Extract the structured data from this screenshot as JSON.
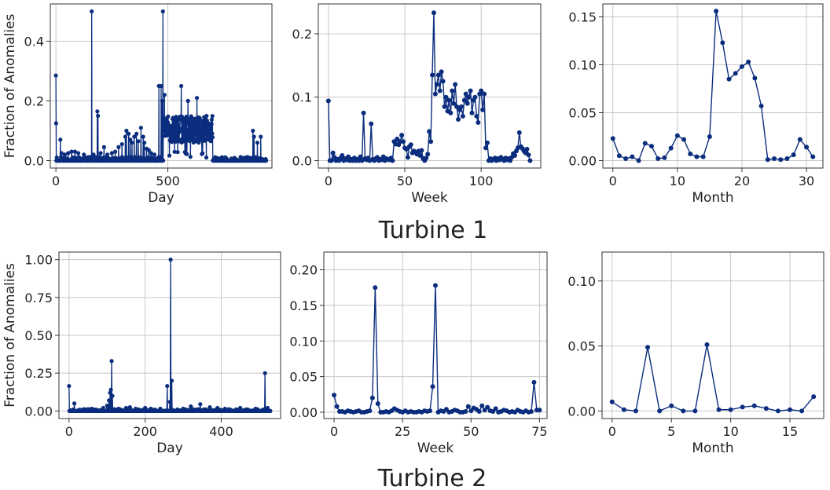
{
  "figure": {
    "row_titles": [
      "Turbine 1",
      "Turbine 2"
    ],
    "line_color": "#0b2d7e",
    "grid_color": "#c8c8c8"
  },
  "chart_data": [
    {
      "id": "t1-day",
      "type": "line",
      "turbine": "Turbine 1",
      "xlabel": "Day",
      "ylabel": "Fraction of Anomalies",
      "xlim": [
        -25,
        965
      ],
      "ylim": [
        -0.025,
        0.525
      ],
      "xticks": [
        0,
        500
      ],
      "xticklabels": [
        "0",
        "500"
      ],
      "yticks": [
        0,
        0.2,
        0.4
      ],
      "yticklabels": [
        "0.0",
        "0.2",
        "0.4"
      ],
      "style": "stem",
      "x_start": 0,
      "step": 1,
      "baseline": 0,
      "spikes": [
        [
          0,
          0.285
        ],
        [
          1,
          0.125
        ],
        [
          20,
          0.07
        ],
        [
          25,
          0.025
        ],
        [
          40,
          0.02
        ],
        [
          55,
          0.025
        ],
        [
          70,
          0.03
        ],
        [
          85,
          0.03
        ],
        [
          100,
          0.025
        ],
        [
          125,
          0.02
        ],
        [
          160,
          0.5
        ],
        [
          168,
          0.02
        ],
        [
          185,
          0.165
        ],
        [
          188,
          0.15
        ],
        [
          200,
          0.025
        ],
        [
          215,
          0.045
        ],
        [
          230,
          0.02
        ],
        [
          250,
          0.025
        ],
        [
          265,
          0.03
        ],
        [
          280,
          0.045
        ],
        [
          295,
          0.055
        ],
        [
          310,
          0.08
        ],
        [
          315,
          0.1
        ],
        [
          325,
          0.09
        ],
        [
          332,
          0.07
        ],
        [
          340,
          0.06
        ],
        [
          350,
          0.08
        ],
        [
          360,
          0.09
        ],
        [
          368,
          0.065
        ],
        [
          380,
          0.11
        ],
        [
          390,
          0.08
        ],
        [
          395,
          0.06
        ],
        [
          405,
          0.04
        ],
        [
          415,
          0.035
        ],
        [
          425,
          0.025
        ],
        [
          440,
          0.02
        ],
        [
          460,
          0.25
        ],
        [
          470,
          0.25
        ],
        [
          475,
          0.2
        ],
        [
          478,
          0.5
        ],
        [
          485,
          0.22
        ],
        [
          560,
          0.25
        ],
        [
          590,
          0.2
        ],
        [
          630,
          0.21
        ],
        [
          880,
          0.1
        ],
        [
          885,
          0.08
        ],
        [
          900,
          0.06
        ],
        [
          915,
          0.08
        ]
      ],
      "segments": [
        {
          "from": 480,
          "to": 700,
          "mean": 0.105,
          "amp": 0.045,
          "floor": 0.01
        }
      ],
      "n_points": 940
    },
    {
      "id": "t1-week",
      "type": "line",
      "turbine": "Turbine 1",
      "xlabel": "Week",
      "ylabel": "",
      "xlim": [
        -6.6,
        139
      ],
      "ylim": [
        -0.0118,
        0.247
      ],
      "xticks": [
        0,
        50,
        100
      ],
      "xticklabels": [
        "0",
        "50",
        "100"
      ],
      "yticks": [
        0,
        0.1,
        0.2
      ],
      "yticklabels": [
        "0.0",
        "0.1",
        "0.2"
      ],
      "x_start": 0,
      "step": 1,
      "values": [
        0.094,
        0.0,
        0.0,
        0.012,
        0.005,
        0.0,
        0.002,
        0.0,
        0.004,
        0.008,
        0.0,
        0.003,
        0.001,
        0.006,
        0.0,
        0.002,
        0.0,
        0.004,
        0.0,
        0.002,
        0.0,
        0.006,
        0.0,
        0.075,
        0.003,
        0.001,
        0.004,
        0.0,
        0.058,
        0.002,
        0.0,
        0.003,
        0.005,
        0.0,
        0.002,
        0.001,
        0.006,
        0.0,
        0.003,
        0.002,
        0.001,
        0.004,
        0.0,
        0.03,
        0.026,
        0.034,
        0.025,
        0.03,
        0.04,
        0.03,
        0.02,
        0.018,
        0.005,
        0.022,
        0.025,
        0.012,
        0.015,
        0.013,
        0.01,
        0.015,
        0.008,
        0.016,
        0.003,
        0.0,
        0.004,
        0.01,
        0.046,
        0.03,
        0.135,
        0.233,
        0.105,
        0.12,
        0.135,
        0.11,
        0.14,
        0.125,
        0.085,
        0.1,
        0.078,
        0.095,
        0.075,
        0.11,
        0.09,
        0.12,
        0.085,
        0.065,
        0.08,
        0.085,
        0.07,
        0.095,
        0.105,
        0.09,
        0.1,
        0.11,
        0.075,
        0.095,
        0.1,
        0.07,
        0.06,
        0.105,
        0.11,
        0.08,
        0.105,
        0.02,
        0.028,
        0.0,
        0.003,
        0.0,
        0.002,
        0.004,
        0.0,
        0.003,
        0.001,
        0.005,
        0.002,
        0.0,
        0.004,
        0.001,
        0.003,
        0.0,
        0.005,
        0.011,
        0.008,
        0.015,
        0.02,
        0.044,
        0.022,
        0.019,
        0.015,
        0.012,
        0.018,
        0.009,
        0.0
      ]
    },
    {
      "id": "t1-month",
      "type": "line",
      "turbine": "Turbine 1",
      "xlabel": "Month",
      "ylabel": "",
      "xlim": [
        -1.55,
        32.55
      ],
      "ylim": [
        -0.0078,
        0.1635
      ],
      "xticks": [
        0,
        10,
        20,
        30
      ],
      "xticklabels": [
        "0",
        "10",
        "20",
        "30"
      ],
      "yticks": [
        0,
        0.05,
        0.1,
        0.15
      ],
      "yticklabels": [
        "0.00",
        "0.05",
        "0.10",
        "0.15"
      ],
      "x_start": 0,
      "step": 1,
      "values": [
        0.023,
        0.005,
        0.002,
        0.004,
        0.0,
        0.018,
        0.015,
        0.002,
        0.003,
        0.013,
        0.026,
        0.022,
        0.007,
        0.004,
        0.004,
        0.025,
        0.156,
        0.123,
        0.085,
        0.091,
        0.098,
        0.103,
        0.086,
        0.057,
        0.001,
        0.002,
        0.001,
        0.002,
        0.006,
        0.022,
        0.014,
        0.004
      ]
    },
    {
      "id": "t2-day",
      "type": "line",
      "turbine": "Turbine 2",
      "xlabel": "Day",
      "ylabel": "Fraction of Anomalies",
      "xlim": [
        -26.5,
        556
      ],
      "ylim": [
        -0.05,
        1.05
      ],
      "xticks": [
        0,
        200,
        400
      ],
      "xticklabels": [
        "0",
        "200",
        "400"
      ],
      "yticks": [
        0,
        0.25,
        0.5,
        0.75,
        1.0
      ],
      "yticklabels": [
        "0.00",
        "0.25",
        "0.50",
        "0.75",
        "1.00"
      ],
      "style": "stem",
      "x_start": 0,
      "step": 1,
      "baseline": 0,
      "spikes": [
        [
          0,
          0.165
        ],
        [
          14,
          0.05
        ],
        [
          60,
          0.015
        ],
        [
          90,
          0.02
        ],
        [
          100,
          0.035
        ],
        [
          105,
          0.07
        ],
        [
          108,
          0.12
        ],
        [
          110,
          0.14
        ],
        [
          112,
          0.33
        ],
        [
          114,
          0.1
        ],
        [
          130,
          0.015
        ],
        [
          150,
          0.02
        ],
        [
          160,
          0.025
        ],
        [
          175,
          0.015
        ],
        [
          200,
          0.02
        ],
        [
          215,
          0.015
        ],
        [
          240,
          0.015
        ],
        [
          258,
          0.165
        ],
        [
          265,
          0.06
        ],
        [
          267,
          1.0
        ],
        [
          270,
          0.2
        ],
        [
          285,
          0.01
        ],
        [
          300,
          0.015
        ],
        [
          320,
          0.03
        ],
        [
          345,
          0.045
        ],
        [
          370,
          0.025
        ],
        [
          390,
          0.02
        ],
        [
          410,
          0.015
        ],
        [
          450,
          0.02
        ],
        [
          470,
          0.01
        ],
        [
          490,
          0.015
        ],
        [
          515,
          0.25
        ],
        [
          522,
          0.02
        ]
      ],
      "segments": [],
      "n_points": 530
    },
    {
      "id": "t2-week",
      "type": "line",
      "turbine": "Turbine 2",
      "xlabel": "Week",
      "ylabel": "",
      "xlim": [
        -3.75,
        77.75
      ],
      "ylim": [
        -0.0089,
        0.2249
      ],
      "xticks": [
        0,
        25,
        50,
        75
      ],
      "xticklabels": [
        "0",
        "25",
        "50",
        "75"
      ],
      "yticks": [
        0,
        0.05,
        0.1,
        0.15,
        0.2
      ],
      "yticklabels": [
        "0.00",
        "0.05",
        "0.10",
        "0.15",
        "0.20"
      ],
      "x_start": 0,
      "step": 1,
      "values": [
        0.024,
        0.008,
        0.001,
        0.001,
        0.0,
        0.002,
        0.001,
        0.0,
        0.001,
        0.002,
        0.0,
        0.0,
        0.001,
        0.002,
        0.02,
        0.175,
        0.012,
        0.0,
        0.0,
        0.001,
        0.0,
        0.002,
        0.005,
        0.003,
        0.001,
        0.0,
        0.002,
        0.0,
        0.001,
        0.0,
        0.0,
        0.001,
        0.0,
        0.002,
        0.001,
        0.002,
        0.036,
        0.178,
        0.0,
        0.002,
        0.001,
        0.004,
        0.0,
        0.001,
        0.003,
        0.002,
        0.0,
        0.0,
        0.001,
        0.008,
        0.002,
        0.006,
        0.004,
        0.001,
        0.009,
        0.003,
        0.007,
        0.002,
        0.001,
        0.005,
        0.0,
        0.001,
        0.003,
        0.002,
        0.0,
        0.001,
        0.0,
        0.003,
        0.001,
        0.0,
        0.002,
        0.0,
        0.001,
        0.042,
        0.003,
        0.003
      ]
    },
    {
      "id": "t2-month",
      "type": "line",
      "turbine": "Turbine 2",
      "xlabel": "Month",
      "ylabel": "",
      "xlim": [
        -0.85,
        17.85
      ],
      "ylim": [
        -0.0058,
        0.1222
      ],
      "xticks": [
        0,
        5,
        10,
        15
      ],
      "xticklabels": [
        "0",
        "5",
        "10",
        "15"
      ],
      "yticks": [
        0,
        0.05,
        0.1
      ],
      "yticklabels": [
        "0.00",
        "0.05",
        "0.10"
      ],
      "x_start": 0,
      "step": 1,
      "values": [
        0.007,
        0.001,
        0.0,
        0.049,
        0.0,
        0.004,
        0.0,
        0.0,
        0.051,
        0.001,
        0.001,
        0.003,
        0.004,
        0.002,
        0.0,
        0.001,
        0.0,
        0.011
      ]
    }
  ]
}
